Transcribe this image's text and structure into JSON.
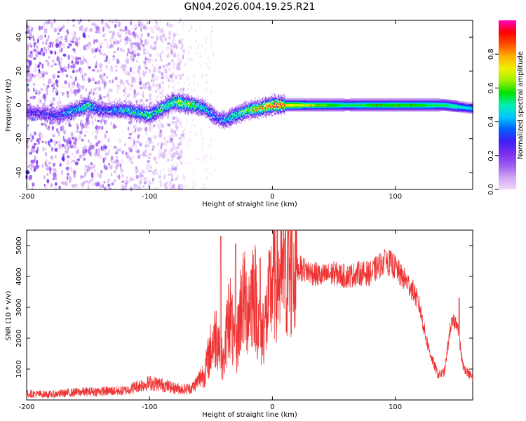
{
  "title": "GN04.2026.004.19.25.R21",
  "colors": {
    "snr_line": "#ee3333",
    "axis": "#000000",
    "colormap": [
      "#f0d8f8",
      "#cfa6f2",
      "#9b5cf0",
      "#7a2cf0",
      "#3d1ef5",
      "#0060ff",
      "#00c8ff",
      "#00f0b0",
      "#00e000",
      "#a0f000",
      "#f0f000",
      "#ffb000",
      "#ff5000",
      "#ff0000",
      "#ff00c0"
    ]
  },
  "chart_data": [
    {
      "type": "heatmap",
      "xlabel": "Height of straight line (km)",
      "ylabel": "Frequency (Hz)",
      "xlim": [
        -200,
        163
      ],
      "ylim": [
        -50,
        50
      ],
      "xticks": [
        -200,
        -100,
        0,
        100
      ],
      "xtick_labels": [
        "-200",
        "-100",
        "0",
        "100"
      ],
      "yticks": [
        -40,
        -20,
        0,
        20,
        40
      ],
      "ytick_labels": [
        "-40",
        "-20",
        "0",
        "20",
        "40"
      ],
      "colorbar": {
        "label": "Normalized spectral amplitude",
        "range": [
          0,
          1
        ],
        "ticks": [
          0.0,
          0.2,
          0.4,
          0.6,
          0.8
        ],
        "tick_labels": [
          "0.0",
          "0.2",
          "0.4",
          "0.6",
          "0.8"
        ]
      },
      "ridge": {
        "x": [
          -200,
          -175,
          -160,
          -150,
          -140,
          -120,
          -100,
          -80,
          -65,
          -55,
          -45,
          -38,
          -30,
          -20,
          -10,
          0,
          20,
          60,
          100,
          140,
          163
        ],
        "frequency": [
          -4,
          -6,
          -3,
          0,
          -3,
          -3,
          -6,
          2,
          0,
          -2,
          -8,
          -9,
          -6,
          -3,
          -2,
          0,
          0,
          0,
          0,
          0,
          -2
        ],
        "amplitude": [
          0.25,
          0.3,
          0.45,
          0.5,
          0.3,
          0.45,
          0.5,
          0.55,
          0.6,
          0.45,
          0.3,
          0.4,
          0.5,
          0.6,
          0.75,
          0.85,
          0.7,
          0.55,
          0.6,
          0.55,
          0.45
        ]
      },
      "noise_region_x": [
        -200,
        -72
      ]
    },
    {
      "type": "line",
      "xlabel": "Height of straight line (km)",
      "ylabel": "SNR (10 * v/v)",
      "xlim": [
        -200,
        163
      ],
      "ylim": [
        0,
        5500
      ],
      "xticks": [
        -200,
        -100,
        0,
        100
      ],
      "xtick_labels": [
        "-200",
        "-100",
        "0",
        "100"
      ],
      "yticks": [
        1000,
        2000,
        3000,
        4000,
        5000
      ],
      "ytick_labels": [
        "1000",
        "2000",
        "3000",
        "4000",
        "5000"
      ],
      "series": [
        {
          "name": "SNR",
          "x": [
            -200,
            -180,
            -160,
            -140,
            -120,
            -110,
            -100,
            -90,
            -80,
            -70,
            -65,
            -60,
            -55,
            -50,
            -45,
            -40,
            -35,
            -30,
            -25,
            -20,
            -15,
            -10,
            -5,
            0,
            5,
            10,
            15,
            20,
            30,
            40,
            50,
            60,
            70,
            80,
            90,
            95,
            100,
            105,
            110,
            115,
            120,
            125,
            130,
            135,
            140,
            145,
            150,
            155,
            160,
            163
          ],
          "y": [
            200,
            180,
            250,
            280,
            300,
            450,
            550,
            500,
            380,
            350,
            400,
            650,
            900,
            1700,
            2200,
            1100,
            3000,
            1400,
            3300,
            3000,
            3700,
            2100,
            2600,
            3900,
            4000,
            3900,
            4100,
            4300,
            4150,
            4000,
            4100,
            4000,
            4100,
            4100,
            4450,
            4450,
            4300,
            4000,
            3800,
            3500,
            3000,
            2000,
            1300,
            800,
            900,
            2400,
            2600,
            1100,
            850,
            700
          ],
          "spikes": [
            {
              "x": -42,
              "y": 5300
            },
            {
              "x": -30,
              "y": 5050
            },
            {
              "x": -10,
              "y": 4600
            },
            {
              "x": 10,
              "y": 5200
            },
            {
              "x": 16,
              "y": 5500
            },
            {
              "x": 92,
              "y": 4800
            },
            {
              "x": 152,
              "y": 3300
            }
          ]
        }
      ]
    }
  ]
}
